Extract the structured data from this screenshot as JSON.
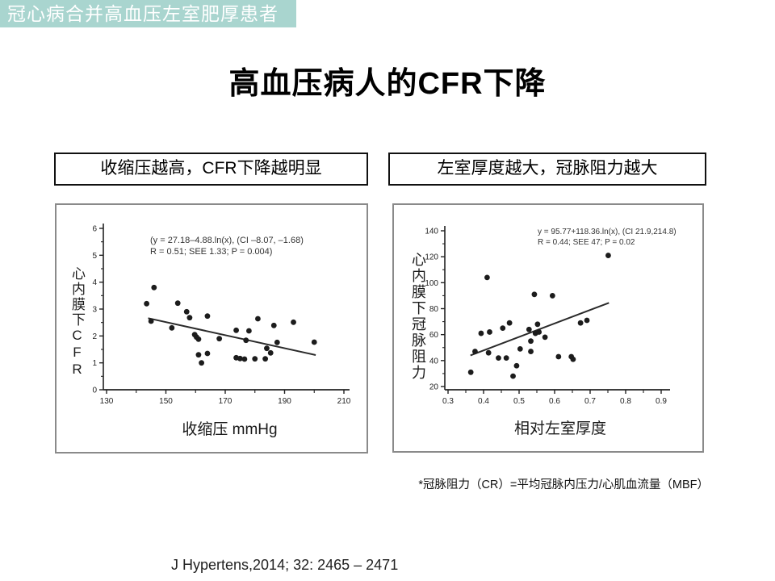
{
  "slide": {
    "banner": "冠心病合并高血压左室肥厚患者",
    "title": "高血压病人的CFR下降",
    "footnote": "*冠脉阻力（CR）=平均冠脉内压力/心肌血流量（MBF）",
    "citation": "J Hypertens,2014; 32: 2465 – 2471"
  },
  "colors": {
    "banner_bg": "#a9d5cf",
    "banner_text": "#ffffff",
    "ink": "#222222",
    "point_fill": "#1c1c1c",
    "panel_border": "#8a8a8a"
  },
  "chart_data": [
    {
      "type": "scatter",
      "caption": "收缩压越高，CFR下降越明显",
      "xlabel": "收缩压 mmHg",
      "ylabel": "心内膜下CFR",
      "xlim": [
        130,
        210
      ],
      "ylim": [
        0,
        6
      ],
      "xticks": [
        130,
        150,
        170,
        190,
        210
      ],
      "xminor": [
        140,
        160,
        180,
        200
      ],
      "yticks": [
        0,
        1,
        2,
        3,
        4,
        5,
        6
      ],
      "yminor": [
        0.5,
        1.5,
        2.5,
        3.5,
        4.5,
        5.5
      ],
      "annotation": [
        "(y = 27.18–4.88.ln(x), (CI –8.07, –1.68)",
        "R = 0.51; SEE 1.33; P = 0.004)"
      ],
      "trendline": [
        144,
        2.66,
        200.5,
        1.29
      ],
      "points": [
        [
          143.5,
          3.2
        ],
        [
          145,
          2.55
        ],
        [
          146,
          3.8
        ],
        [
          152,
          2.3
        ],
        [
          154,
          3.22
        ],
        [
          157,
          2.9
        ],
        [
          158,
          2.68
        ],
        [
          159.7,
          2.05
        ],
        [
          160.3,
          1.96
        ],
        [
          161,
          1.88
        ],
        [
          161,
          1.3
        ],
        [
          162,
          1.0
        ],
        [
          164,
          1.35
        ],
        [
          164,
          2.74
        ],
        [
          168,
          1.9
        ],
        [
          173.7,
          2.21
        ],
        [
          173.7,
          1.19
        ],
        [
          175,
          1.16
        ],
        [
          176.5,
          1.14
        ],
        [
          177,
          1.84
        ],
        [
          178,
          2.19
        ],
        [
          180,
          1.15
        ],
        [
          181,
          2.64
        ],
        [
          183.5,
          1.15
        ],
        [
          184,
          1.54
        ],
        [
          185.3,
          1.37
        ],
        [
          186.4,
          2.39
        ],
        [
          187.5,
          1.76
        ],
        [
          193,
          2.51
        ],
        [
          200,
          1.77
        ]
      ]
    },
    {
      "type": "scatter",
      "caption": "左室厚度越大，冠脉阻力越大",
      "xlabel": "相对左室厚度",
      "ylabel": "心内膜下冠脉阻力",
      "xlim": [
        0.3,
        0.9
      ],
      "ylim": [
        20,
        140
      ],
      "xticks": [
        0.3,
        0.4,
        0.5,
        0.6,
        0.7,
        0.8,
        0.9
      ],
      "xminor": [
        0.35,
        0.45,
        0.55,
        0.65,
        0.75,
        0.85
      ],
      "yticks": [
        20,
        40,
        60,
        80,
        100,
        120,
        140
      ],
      "yminor": [
        30,
        50,
        70,
        90,
        110,
        130
      ],
      "annotation": [
        "y = 95.77+118.36.ln(x), (CI 21.9,214.8)",
        "R = 0.44; SEE 47; P = 0.02"
      ],
      "trendline": [
        0.363,
        44,
        0.753,
        84.5
      ],
      "points": [
        [
          0.364,
          31
        ],
        [
          0.376,
          47
        ],
        [
          0.393,
          61
        ],
        [
          0.41,
          104
        ],
        [
          0.414,
          46
        ],
        [
          0.417,
          62
        ],
        [
          0.442,
          42
        ],
        [
          0.454,
          65
        ],
        [
          0.464,
          42
        ],
        [
          0.473,
          69
        ],
        [
          0.483,
          28
        ],
        [
          0.493,
          36
        ],
        [
          0.503,
          49
        ],
        [
          0.528,
          64
        ],
        [
          0.533,
          55
        ],
        [
          0.533,
          47
        ],
        [
          0.543,
          91
        ],
        [
          0.546,
          61
        ],
        [
          0.552,
          68
        ],
        [
          0.556,
          62
        ],
        [
          0.573,
          58
        ],
        [
          0.594,
          90
        ],
        [
          0.611,
          43
        ],
        [
          0.647,
          43
        ],
        [
          0.652,
          41
        ],
        [
          0.673,
          69
        ],
        [
          0.691,
          71
        ],
        [
          0.751,
          121
        ]
      ]
    }
  ]
}
